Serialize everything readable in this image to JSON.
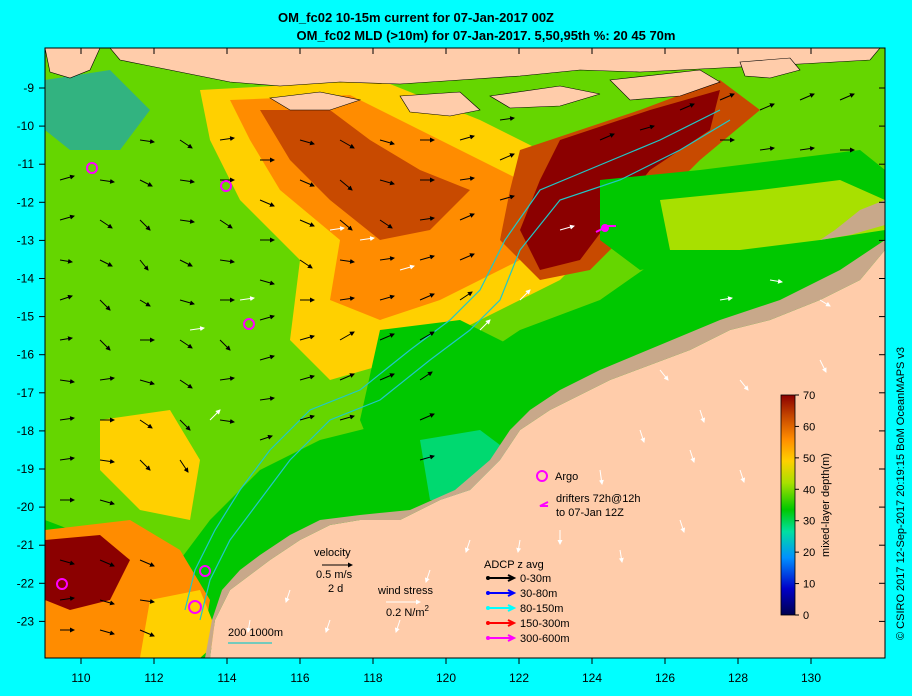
{
  "title": {
    "line1": "OM_fc02 10-15m current for 07-Jan-2017 00Z",
    "line2": "OM_fc02 MLD (>10m) for 07-Jan-2017. 5,50,95th %: 20  45  70m"
  },
  "axes": {
    "lon_ticks": [
      "110",
      "112",
      "114",
      "116",
      "118",
      "120",
      "122",
      "124",
      "126",
      "128",
      "130"
    ],
    "lat_ticks": [
      "-9",
      "-10",
      "-11",
      "-12",
      "-13",
      "-14",
      "-15",
      "-16",
      "-17",
      "-18",
      "-19",
      "-20",
      "-21",
      "-22",
      "-23"
    ]
  },
  "colorbar": {
    "label": "mixed-layer depth(m)",
    "ticks": [
      "0",
      "10",
      "20",
      "30",
      "40",
      "50",
      "60",
      "70"
    ],
    "colors": [
      "#00004f",
      "#0000c8",
      "#0090ff",
      "#00e0a0",
      "#00c800",
      "#a8e000",
      "#ffd000",
      "#ff8c00",
      "#c84a00",
      "#8b0000"
    ]
  },
  "legend": {
    "argo_label": "Argo",
    "drifters_line1": "drifters 72h@12h",
    "drifters_line2": "to 07-Jan 12Z",
    "velocity_label": "velocity",
    "velocity_scale": "0.5 m/s",
    "velocity_duration": "2 d",
    "wind_label": "wind stress",
    "wind_scale": "0.2 N/m",
    "wind_exp": "2",
    "adcp_title": "ADCP z avg",
    "adcp_items": [
      {
        "label": "0-30m",
        "color": "#000000"
      },
      {
        "label": "30-80m",
        "color": "#0000ff"
      },
      {
        "label": "80-150m",
        "color": "#00ffff"
      },
      {
        "label": "150-300m",
        "color": "#ff0000"
      },
      {
        "label": "300-600m",
        "color": "#ff00ff"
      }
    ],
    "isobath_label": "200  1000m"
  },
  "credit": "© CSIRO 2017   12-Sep-2017 20:19:15 BoM OceanMAPS v3"
}
